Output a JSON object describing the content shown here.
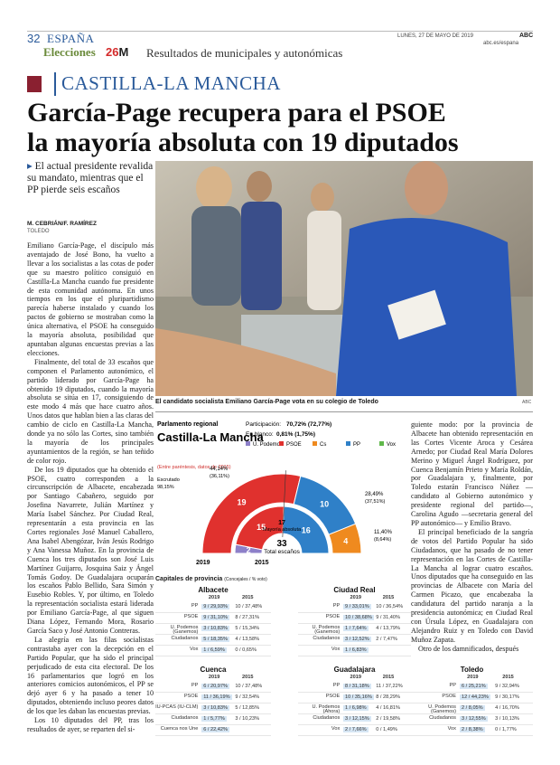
{
  "header": {
    "page": "32",
    "section": "ESPAÑA",
    "date": "LUNES, 27 DE MAYO DE 2019",
    "brand": "ABC",
    "url": "abc.es/espana",
    "elections": "Elecciones",
    "logo_num": "26",
    "logo_m": "M",
    "banner": "Resultados de municipales y autonómicas"
  },
  "region": "CASTILLA-LA MANCHA",
  "headline": [
    "García-Page recupera para el PSOE",
    "la mayoría absoluta con 19 diputados"
  ],
  "deck": "El actual presidente revalida su mandato, mientras que el PP pierde seis escaños",
  "byline": {
    "authors": "M. CEBRIÁN/F. RAMÍREZ",
    "place": "TOLEDO"
  },
  "body_left": [
    "Emiliano García-Page, el discípulo más aventajado de José Bono, ha vuelto a llevar a los socialistas a las cotas de poder que su maestro político consiguió en Castilla-La Mancha cuando fue presidente de esta comunidad autónoma. En unos tiempos en los que el pluripartidismo parecía haberse instalado y cuando los pactos de gobierno se mostraban como la única alternativa, el PSOE ha conseguido la mayoría absoluta, posibilidad que apuntaban algunas encuestas previas a las elecciones.",
    "Finalmente, del total de 33 escaños que componen el Parlamento autonómico, el partido liderado por García-Page ha obtenido 19 diputados, cuando la mayoría absoluta se sitúa en 17, consiguiendo de este modo 4 más que hace cuatro años. Unos datos que hablan bien a las claras del cambio de ciclo en Castilla-La Mancha, donde ya no sólo las Cortes, sino también la mayoría de los principales ayuntamientos de la región, se han teñido de color rojo.",
    "De los 19 diputados que ha obtenido el PSOE, cuatro corresponden a la circunscripción de Albacete, encabezada por Santiago Cabañero, seguido por Josefina Navarrete, Julián Martínez y María Isabel Sánchez. Por Ciudad Real, representarán a esta provincia en las Cortes regionales José Manuel Caballero, Ana Isabel Abengózar, Iván Jesús Rodrigo y Ana Vanessa Muñoz. En la provincia de Cuenca los tres diputados son José Luis Martínez Guijarro, Josquina Saiz y Ángel Tomás Godoy. De Guadalajara ocuparán los escaños Pablo Bellido, Sara Simón y Eusebio Robles. Y, por último, en Toledo la representación socialista estará liderada por Emiliano García-Page, al que siguen Diana López, Fernando Mora, Rosario García Saco y José Antonio Contreras.",
    "La alegría en las filas socialistas contrastaba ayer con la decepción en el Partido Popular, que ha sido el principal perjudicado de esta cita electoral. De los 16 parlamentarios que logró en los anteriores comicios autonómicos, el PP se dejó ayer 6 y ha pasado a tener 10 diputados, obteniendo incluso peores datos de los que les daban las encuestas previas.",
    "Los 10 diputados del PP, tras los resultados de ayer, se reparten del si-"
  ],
  "body_right": [
    "guiente modo: por la provincia de Albacete han obtenido representación en las Cortes Vicente Aroca y Cesárea Arnedo; por Ciudad Real María Dolores Merino y Miguel Ángel Rodríguez, por Cuenca Benjamín Prieto y María Roldán, por Guadalajara y, finalmente, por Toledo estarán Francisco Núñez —candidato al Gobierno autonómico y presidente regional del partido—, Carolina Agudo —secretaria general del PP autonómico— y Emilio Bravo.",
    "El principal beneficiado de la sangría de votos del Partido Popular ha sido Ciudadanos, que ha pasado de no tener representación en las Cortes de Castilla-La Mancha al lograr cuatro escaños. Unos diputados que ha conseguido en las provincias de Albacete con María del Carmen Picazo, que encabezaba la candidatura del partido naranja a la presidencia autonómica; en Ciudad Real con Úrsula López, en Guadalajara con Alejandro Ruiz y en Toledo con David Muñoz Zapata.",
    "Otro de los damnificados, después"
  ],
  "photo": {
    "caption": "El candidato socialista Emiliano García-Page vota en su colegio de Toledo",
    "credit": "ABC"
  },
  "chart": {
    "kicker": "Parlamento regional",
    "title": "Castilla-La Mancha",
    "participation": {
      "label": "Participación:",
      "value": "70,72% (72,77%)"
    },
    "blank": {
      "label": "En blanco:",
      "value": "0,81% (1,75%)"
    },
    "scrutiny": {
      "label": "Escrutado",
      "value": "98,15%"
    },
    "note": "(Entre paréntesis, datos de 2015)",
    "parties": [
      {
        "name": "U. Podemos",
        "color": "#8d80c9"
      },
      {
        "name": "PSOE",
        "color": "#e0312e",
        "vote": "44,14%",
        "vote_prev": "(36,11%)"
      },
      {
        "name": "Cs",
        "color": "#ef8a1f",
        "vote": "11,40%",
        "vote_prev": "(8,64%)"
      },
      {
        "name": "PP",
        "color": "#2f80c8",
        "vote": "28,49%",
        "vote_prev": "(37,51%)"
      },
      {
        "name": "Vox",
        "color": "#5fb84a"
      }
    ],
    "rings": [
      {
        "label": "2019",
        "values": [
          0,
          19,
          4,
          10,
          0
        ]
      },
      {
        "label": "2015",
        "values": [
          2,
          15,
          0,
          16,
          0
        ]
      }
    ],
    "majority": {
      "value": 17,
      "label": "Mayoría absoluta"
    },
    "total": {
      "value": 33,
      "label": "Total escaños"
    }
  },
  "tables": {
    "title": "Capitales de provincia",
    "unit": "(Concejales / % voto)",
    "years": [
      "2019",
      "2015"
    ],
    "cities": [
      {
        "name": "Albacete",
        "rows": [
          [
            "PP",
            "9 / 29,93%",
            "10 / 37,48%"
          ],
          [
            "PSOE",
            "9 / 31,10%",
            "8 / 27,31%"
          ],
          [
            "U. Podemos (Ganemos)",
            "3 / 10,83%",
            "5 / 15,34%"
          ],
          [
            "Ciudadanos",
            "5 / 18,35%",
            "4 / 13,58%"
          ],
          [
            "Vox",
            "1 / 6,59%",
            "0 / 0,65%"
          ]
        ]
      },
      {
        "name": "Ciudad Real",
        "rows": [
          [
            "PP",
            "9 / 33,01%",
            "10 / 36,54%"
          ],
          [
            "PSOE",
            "10 / 38,68%",
            "9 / 31,40%"
          ],
          [
            "U. Podemos (Ganemos)",
            "1 / 7,64%",
            "4 / 13,79%"
          ],
          [
            "Ciudadanos",
            "3 / 12,52%",
            "2 / 7,47%"
          ],
          [
            "Vox",
            "1 / 6,83%"
          ]
        ]
      },
      {
        "name": "Cuenca",
        "rows": [
          [
            "PP",
            "6 / 20,97%",
            "10 / 37,48%"
          ],
          [
            "PSOE",
            "11 / 36,19%",
            "9 / 32,54%"
          ],
          [
            "IU-PCAS (IU-CLM)",
            "3 / 10,83%",
            "5 / 12,85%"
          ],
          [
            "Ciudadanos",
            "1 / 5,77%",
            "3 / 10,23%"
          ],
          [
            "Cuenca nos Une",
            "6 / 22,42%"
          ]
        ]
      },
      {
        "name": "Guadalajara",
        "rows": [
          [
            "PP",
            "8 / 31,18%",
            "11 / 37,22%"
          ],
          [
            "PSOE",
            "10 / 35,16%",
            "8 / 28,29%"
          ],
          [
            "U. Podemos (Ahora)",
            "1 / 6,98%",
            "4 / 16,81%"
          ],
          [
            "Ciudadanos",
            "3 / 12,15%",
            "2 / 19,58%"
          ],
          [
            "Vox",
            "2 / 7,66%",
            "0 / 1,49%"
          ]
        ]
      },
      {
        "name": "Toledo",
        "rows": [
          [
            "PP",
            "6 / 25,21%",
            "9 / 32,94%"
          ],
          [
            "PSOE",
            "12 / 44,23%",
            "9 / 30,17%"
          ],
          [
            "U. Podemos (Ganemos)",
            "2 / 8,05%",
            "4 / 16,70%"
          ],
          [
            "Ciudadanos",
            "3 / 12,55%",
            "3 / 10,13%"
          ],
          [
            "Vox",
            "2 / 8,38%",
            "0 / 1,77%"
          ]
        ]
      }
    ]
  }
}
